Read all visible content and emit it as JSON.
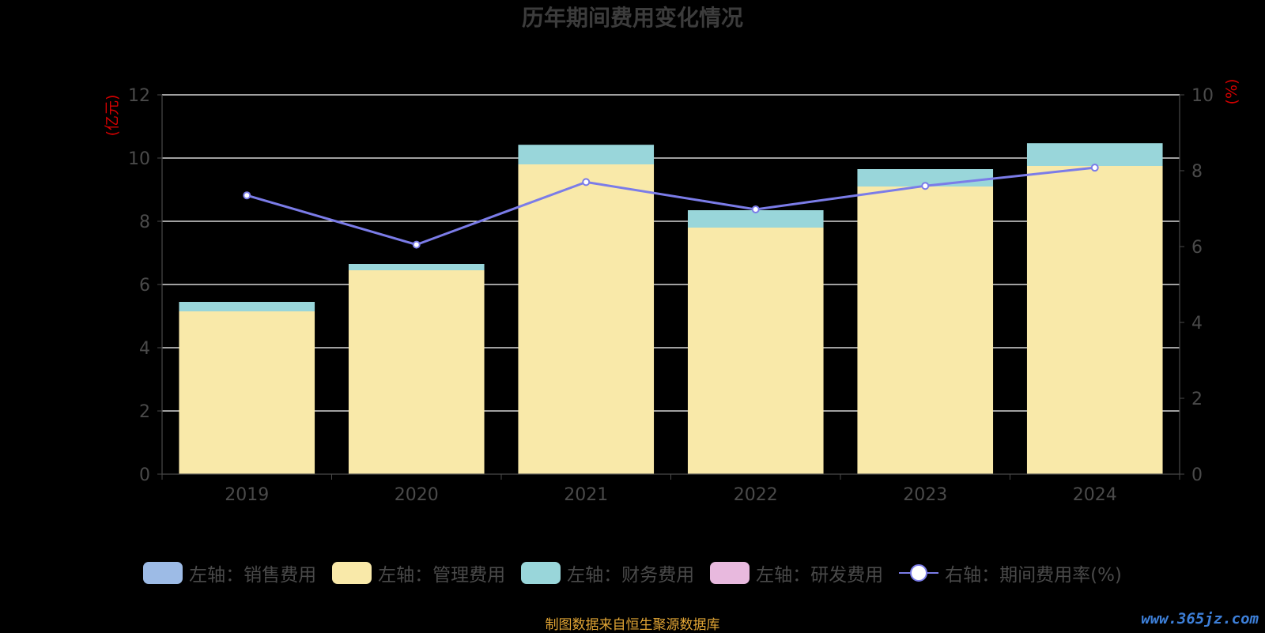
{
  "title": "历年期间费用变化情况",
  "source_note": "制图数据来自恒生聚源数据库",
  "watermark": "www.365jz.com",
  "colors": {
    "sales": "#9dbbe6",
    "admin": "#f9e9a9",
    "finance": "#99d6da",
    "rnd": "#e8b9de",
    "rate": "#7b7ce8",
    "unit": "#d40000",
    "axis_text": "#4a4a4a",
    "grid": "#ffffff",
    "title": "#3c3c3c"
  },
  "legend": [
    {
      "label": "左轴：销售费用",
      "type": "swatch",
      "color": "#9dbbe6"
    },
    {
      "label": "左轴：管理费用",
      "type": "swatch",
      "color": "#f9e9a9"
    },
    {
      "label": "左轴：财务费用",
      "type": "swatch",
      "color": "#99d6da"
    },
    {
      "label": "左轴：研发费用",
      "type": "swatch",
      "color": "#e8b9de"
    },
    {
      "label": "右轴：期间费用率(%)",
      "type": "line",
      "color": "#7b7ce8"
    }
  ],
  "chart_data": {
    "type": "bar",
    "title": "历年期间费用变化情况",
    "categories": [
      "2019",
      "2020",
      "2021",
      "2022",
      "2023",
      "2024"
    ],
    "stacked": true,
    "series": [
      {
        "name": "左轴：销售费用",
        "axis": "left",
        "values": [
          0,
          0,
          0,
          0,
          0,
          0
        ]
      },
      {
        "name": "左轴：管理费用",
        "axis": "left",
        "values": [
          5.15,
          6.45,
          9.8,
          7.8,
          9.1,
          9.75
        ]
      },
      {
        "name": "左轴：财务费用",
        "axis": "left",
        "values": [
          0.3,
          0.2,
          0.62,
          0.55,
          0.55,
          0.72
        ]
      },
      {
        "name": "左轴：研发费用",
        "axis": "left",
        "values": [
          0,
          0,
          0,
          0,
          0,
          0
        ]
      },
      {
        "name": "右轴：期间费用率(%)",
        "axis": "right",
        "type": "line",
        "values": [
          7.35,
          6.05,
          7.7,
          6.98,
          7.6,
          8.08
        ]
      }
    ],
    "left_axis": {
      "unit_label": "(亿元)",
      "ylim": [
        0,
        12
      ],
      "ticks": [
        "0",
        "2",
        "4",
        "6",
        "8",
        "10",
        "12"
      ]
    },
    "right_axis": {
      "unit_label": "(%)",
      "ylim": [
        0,
        10
      ],
      "ticks": [
        "0",
        "2",
        "4",
        "6",
        "8",
        "10"
      ]
    },
    "grid": true
  }
}
